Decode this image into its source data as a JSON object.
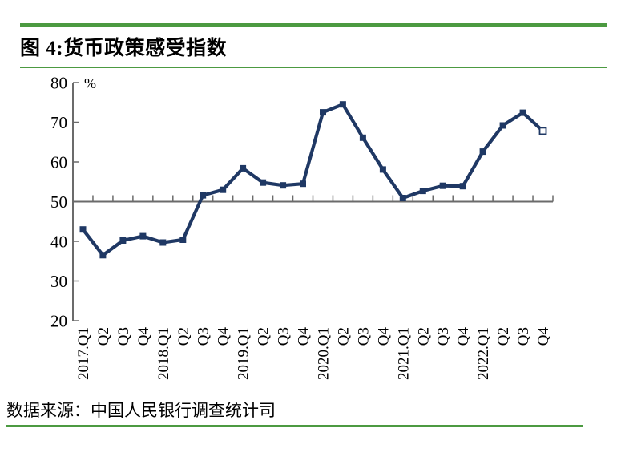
{
  "header": {
    "title": "图 4:货币政策感受指数"
  },
  "footer": {
    "source": "数据来源：中国人民银行调查统计司"
  },
  "colors": {
    "accent_green": "#4C9A41",
    "series_navy": "#1F3864",
    "axis_gray": "#6B6B6B",
    "hollow_marker_fill": "#FFFFFF"
  },
  "chart_data": {
    "type": "line",
    "title": "图 4:货币政策感受指数",
    "ylabel": "%",
    "categories": [
      "2017.Q1",
      "Q2",
      "Q3",
      "Q4",
      "2018.Q1",
      "Q2",
      "Q3",
      "Q4",
      "2019.Q1",
      "Q2",
      "Q3",
      "Q4",
      "2020.Q1",
      "Q2",
      "Q3",
      "Q4",
      "2021.Q1",
      "Q2",
      "Q3",
      "Q4",
      "2022.Q1",
      "Q2",
      "Q3",
      "Q4"
    ],
    "values": [
      43.0,
      36.5,
      40.2,
      41.3,
      39.7,
      40.4,
      51.6,
      53.0,
      58.4,
      54.8,
      54.1,
      54.5,
      72.5,
      74.5,
      66.1,
      58.1,
      50.9,
      52.7,
      54.0,
      53.9,
      62.6,
      69.2,
      72.4,
      67.8
    ],
    "ylim": [
      20,
      80
    ],
    "yticks": [
      20,
      30,
      40,
      50,
      60,
      70,
      80
    ],
    "x_baseline_at": 50,
    "grid": false,
    "legend": false,
    "marker": "square",
    "last_marker_hollow": true,
    "source": "数据来源：中国人民银行调查统计司"
  }
}
